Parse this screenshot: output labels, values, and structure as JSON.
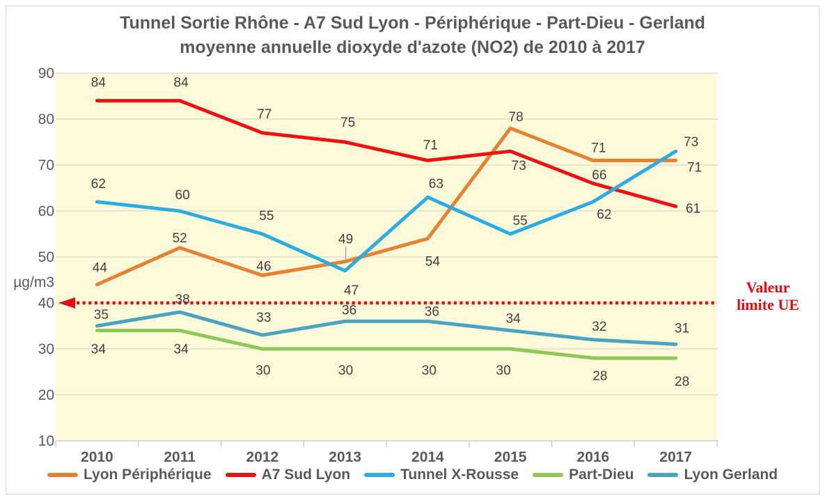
{
  "title": {
    "line1": "Tunnel Sortie Rhône - A7 Sud Lyon - Périphérique - Part-Dieu - Gerland",
    "line2": "moyenne annuelle dioxyde d'azote (NO2) de 2010 à 2017"
  },
  "chart_data": {
    "type": "line",
    "categories": [
      "2010",
      "2011",
      "2012",
      "2013",
      "2014",
      "2015",
      "2016",
      "2017"
    ],
    "y_axis": {
      "label": "µg/m3",
      "min": 10,
      "max": 90,
      "step": 10
    },
    "grid": true,
    "legend_position": "bottom",
    "colors": {
      "plot_bg": "#FCFAD8",
      "grid": "#DBD9CB",
      "axis": "#C9C8BD",
      "axis_text": "#595959",
      "data_label": "#404040",
      "leader": "#A0A0A0"
    },
    "series": [
      {
        "name": "Lyon Périphérique",
        "color": "#E8812F",
        "values": [
          44,
          52,
          46,
          49,
          54,
          78,
          71,
          71
        ],
        "label_offsets": [
          [
            4,
            -18
          ],
          [
            0,
            -8
          ],
          [
            2,
            -7
          ],
          [
            1,
            -26,
            true
          ],
          [
            7,
            39
          ],
          [
            8,
            -10
          ],
          [
            8,
            -12
          ],
          [
            27,
            16
          ]
        ]
      },
      {
        "name": "A7 Sud Lyon",
        "color": "#ED1111",
        "values": [
          84,
          84,
          77,
          75,
          71,
          73,
          66,
          61
        ],
        "label_offsets": [
          [
            2,
            -20
          ],
          [
            2,
            -20
          ],
          [
            3,
            -21
          ],
          [
            4,
            -22
          ],
          [
            4,
            -16
          ],
          [
            12,
            27
          ],
          [
            9,
            -6
          ],
          [
            25,
            9
          ]
        ]
      },
      {
        "name": "Tunnel X-Rousse",
        "color": "#2BACE2",
        "values": [
          62,
          60,
          55,
          47,
          63,
          55,
          62,
          73
        ],
        "label_offsets": [
          [
            2,
            -20
          ],
          [
            4,
            -17
          ],
          [
            6,
            -20
          ],
          [
            9,
            34
          ],
          [
            12,
            -13
          ],
          [
            14,
            -13
          ],
          [
            16,
            24
          ],
          [
            22,
            -7
          ]
        ]
      },
      {
        "name": "Part-Dieu",
        "color": "#8FC857",
        "values": [
          34,
          34,
          30,
          30,
          30,
          30,
          28,
          28
        ],
        "label_offsets": [
          [
            2,
            33
          ],
          [
            2,
            33
          ],
          [
            1,
            37
          ],
          [
            1,
            37
          ],
          [
            2,
            37
          ],
          [
            -10,
            37
          ],
          [
            10,
            32
          ],
          [
            9,
            40
          ]
        ]
      },
      {
        "name": "Lyon Gerland",
        "color": "#4AA3C0",
        "values": [
          35,
          38,
          33,
          36,
          36,
          34,
          32,
          31
        ],
        "label_offsets": [
          [
            6,
            -10
          ],
          [
            4,
            -12
          ],
          [
            2,
            -19
          ],
          [
            6,
            -10
          ],
          [
            6,
            -8
          ],
          [
            4,
            -11
          ],
          [
            9,
            -13
          ],
          [
            9,
            -17
          ]
        ]
      }
    ],
    "limit_line": {
      "value": 40,
      "label": "Valeur limite UE",
      "color": "#E60C11"
    }
  }
}
